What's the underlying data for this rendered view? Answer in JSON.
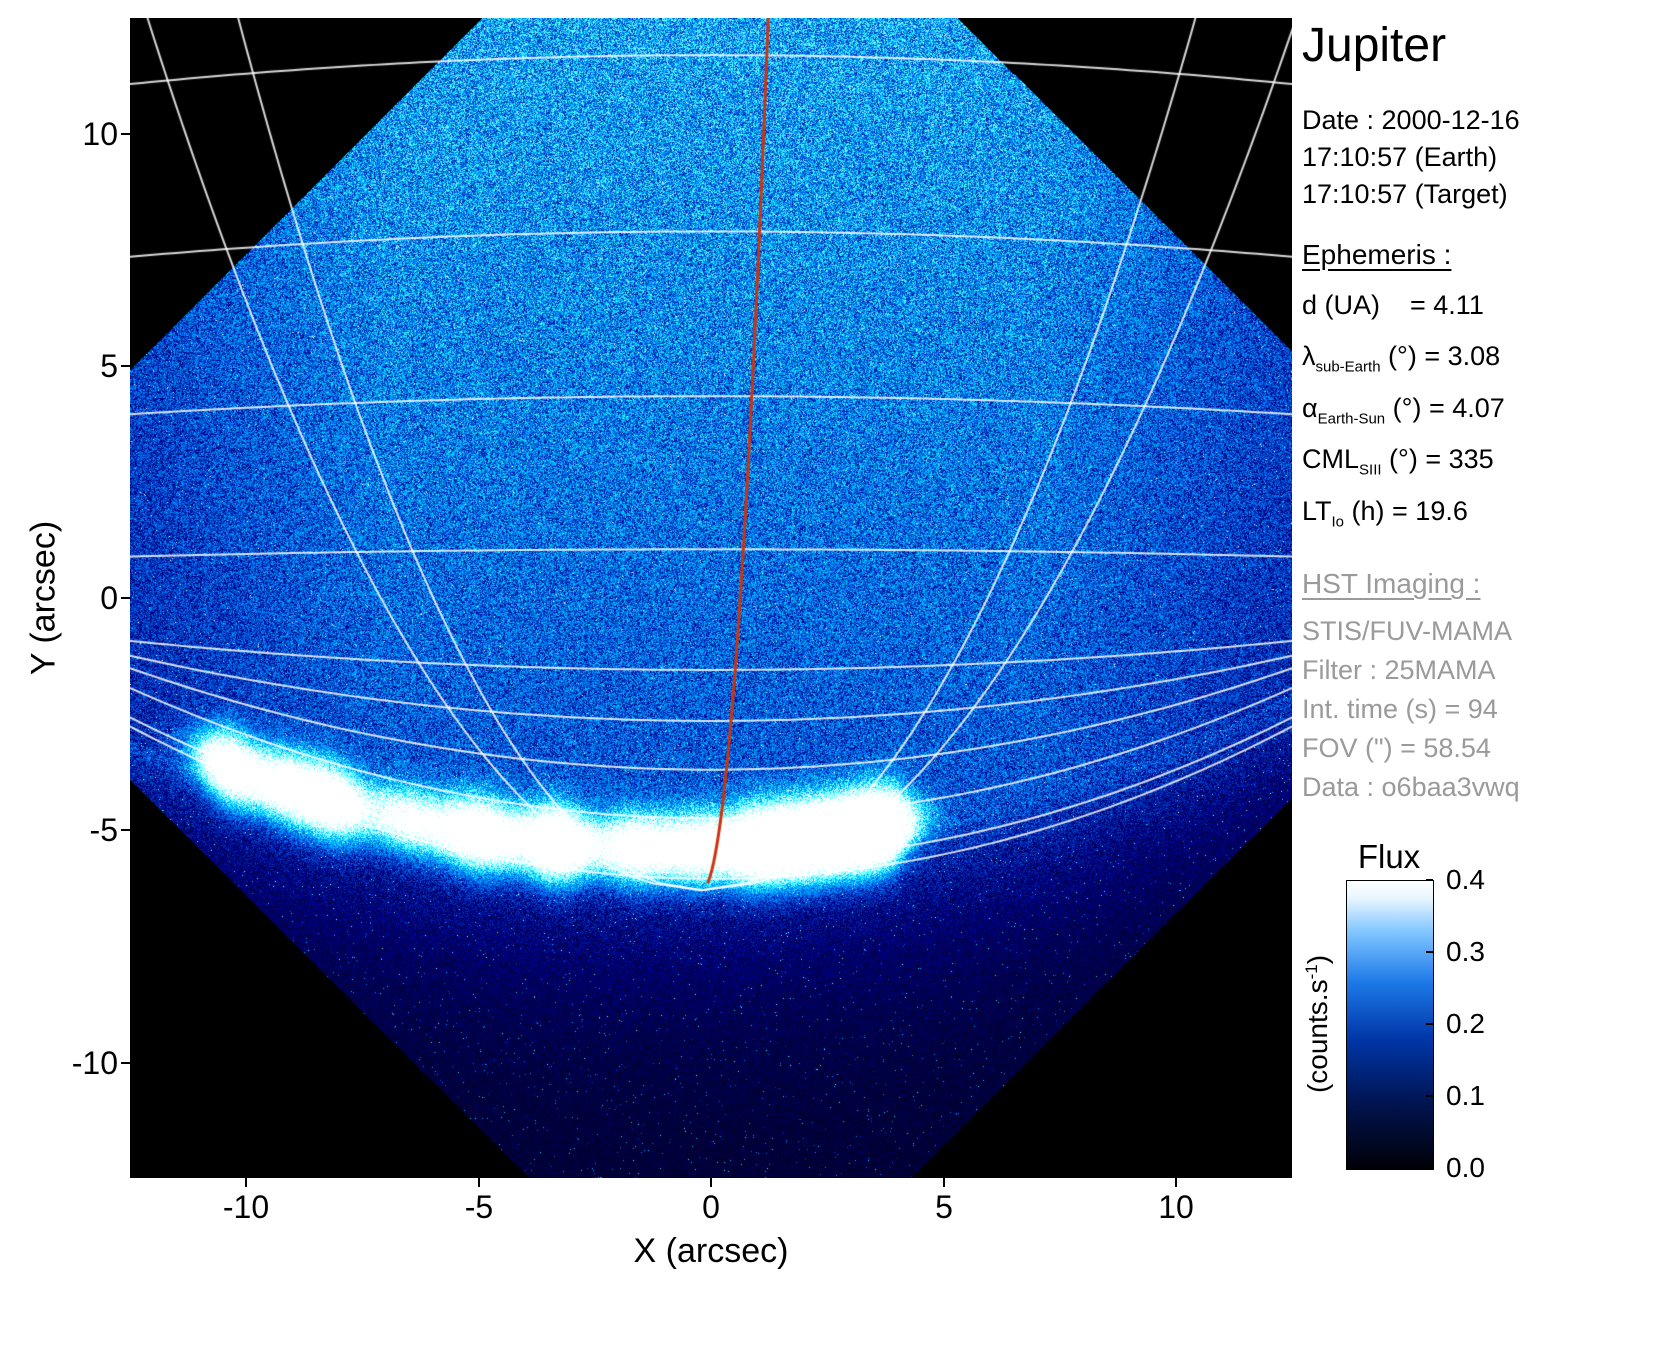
{
  "title": "Jupiter",
  "header": {
    "date_line": "Date : 2000-12-16",
    "earth_time": "17:10:57 (Earth)",
    "target_time": "17:10:57 (Target)"
  },
  "ephemeris": {
    "heading": "Ephemeris :",
    "items": [
      {
        "pre": "d (UA)",
        "sub": "",
        "post": "    = 4.11"
      },
      {
        "pre": "λ",
        "sub": "sub-Earth",
        "post": " (°) = 3.08"
      },
      {
        "pre": "α",
        "sub": "Earth-Sun",
        "post": " (°) = 4.07"
      },
      {
        "pre": "CML",
        "sub": "SIII",
        "post": " (°) = 335"
      },
      {
        "pre": "LT",
        "sub": "Io",
        "post": " (h) = 19.6"
      }
    ]
  },
  "hst": {
    "heading": "HST Imaging :",
    "lines": [
      "STIS/FUV-MAMA",
      "Filter : 25MAMA",
      "Int. time (s) = 94",
      "FOV (\") = 58.54",
      "Data : o6baa3vwq"
    ]
  },
  "axes": {
    "x_label": "X (arcsec)",
    "y_label": "Y (arcsec)",
    "x_ticks": [
      "-10",
      "-5",
      "0",
      "5",
      "10"
    ],
    "y_ticks": [
      "10",
      "5",
      "0",
      "-5",
      "-10"
    ]
  },
  "colorbar": {
    "title": "Flux",
    "ticks": [
      "0.4",
      "0.3",
      "0.2",
      "0.1",
      "0.0"
    ],
    "unit_pre": "(counts.s",
    "unit_sup": "-1",
    "unit_post": ")"
  },
  "chart_data": {
    "type": "heatmap",
    "title": "Jupiter",
    "xlabel": "X (arcsec)",
    "ylabel": "Y (arcsec)",
    "xlim": [
      -12.5,
      12.5
    ],
    "ylim": [
      -12.5,
      12.5
    ],
    "x_ticks": [
      -10,
      -5,
      0,
      5,
      10
    ],
    "y_ticks": [
      10,
      5,
      0,
      -5,
      -10
    ],
    "colorbar": {
      "label": "Flux (counts.s-1)",
      "min": 0.0,
      "max": 0.4,
      "ticks": [
        0.0,
        0.1,
        0.2,
        0.3,
        0.4
      ],
      "colormap": "black-blue-white"
    },
    "description": "HST STIS FUV-MAMA image of Jupiter (25MAMA filter, 94 s integration) showing the bright auroral emission arc near the planetary limb around y = -3.5 to -6 arcsec, with a latitude/longitude graticule overlaid in white and the central meridian (CML = 335 deg SIII) drawn in red; diamond-shaped detector field of view on black background.",
    "aurora": {
      "limb": {
        "a": -5.7,
        "b": 0.02,
        "x0": 1
      },
      "band_offset": 0.3,
      "band_sigma": 0.32,
      "base_amp": 0.35,
      "range": [
        -11.3,
        4.7
      ],
      "blobs": [
        {
          "x": -10.4,
          "w": 0.5,
          "a": 0.9
        },
        {
          "x": -9.0,
          "w": 0.6,
          "a": 0.85
        },
        {
          "x": -8.0,
          "w": 0.45,
          "a": 0.7
        },
        {
          "x": -6.6,
          "w": 0.5,
          "a": 0.5
        },
        {
          "x": -5.0,
          "w": 0.7,
          "a": 0.95
        },
        {
          "x": -3.3,
          "w": 0.5,
          "a": 1.05
        },
        {
          "x": -1.6,
          "w": 0.6,
          "a": 0.8
        },
        {
          "x": -0.3,
          "w": 0.5,
          "a": 0.7
        },
        {
          "x": 1.0,
          "w": 0.6,
          "a": 0.9
        },
        {
          "x": 2.4,
          "w": 0.9,
          "a": 1.5
        },
        {
          "x": 3.6,
          "w": 0.5,
          "a": 1.1
        }
      ]
    },
    "overlays": {
      "graticule": {
        "parallels": [
          [
            11.7,
            -0.004
          ],
          [
            7.9,
            -0.0035
          ],
          [
            4.35,
            -0.0025
          ],
          [
            1.05,
            -0.001
          ],
          [
            -1.55,
            0.004
          ],
          [
            -2.65,
            0.009
          ],
          [
            -3.7,
            0.014
          ],
          [
            -4.75,
            0.018
          ],
          [
            -5.7,
            0.02
          ],
          [
            -6.05,
            0.021
          ]
        ],
        "meridians": {
          "xp": -0.2,
          "yp": -6.3,
          "slopes": [
            -2.75,
            -2.3,
            2.45,
            2.95
          ]
        },
        "cml": {
          "xp": -0.2,
          "yp": -6.3,
          "slope": 0.33,
          "color": "#cc3311"
        }
      }
    }
  }
}
